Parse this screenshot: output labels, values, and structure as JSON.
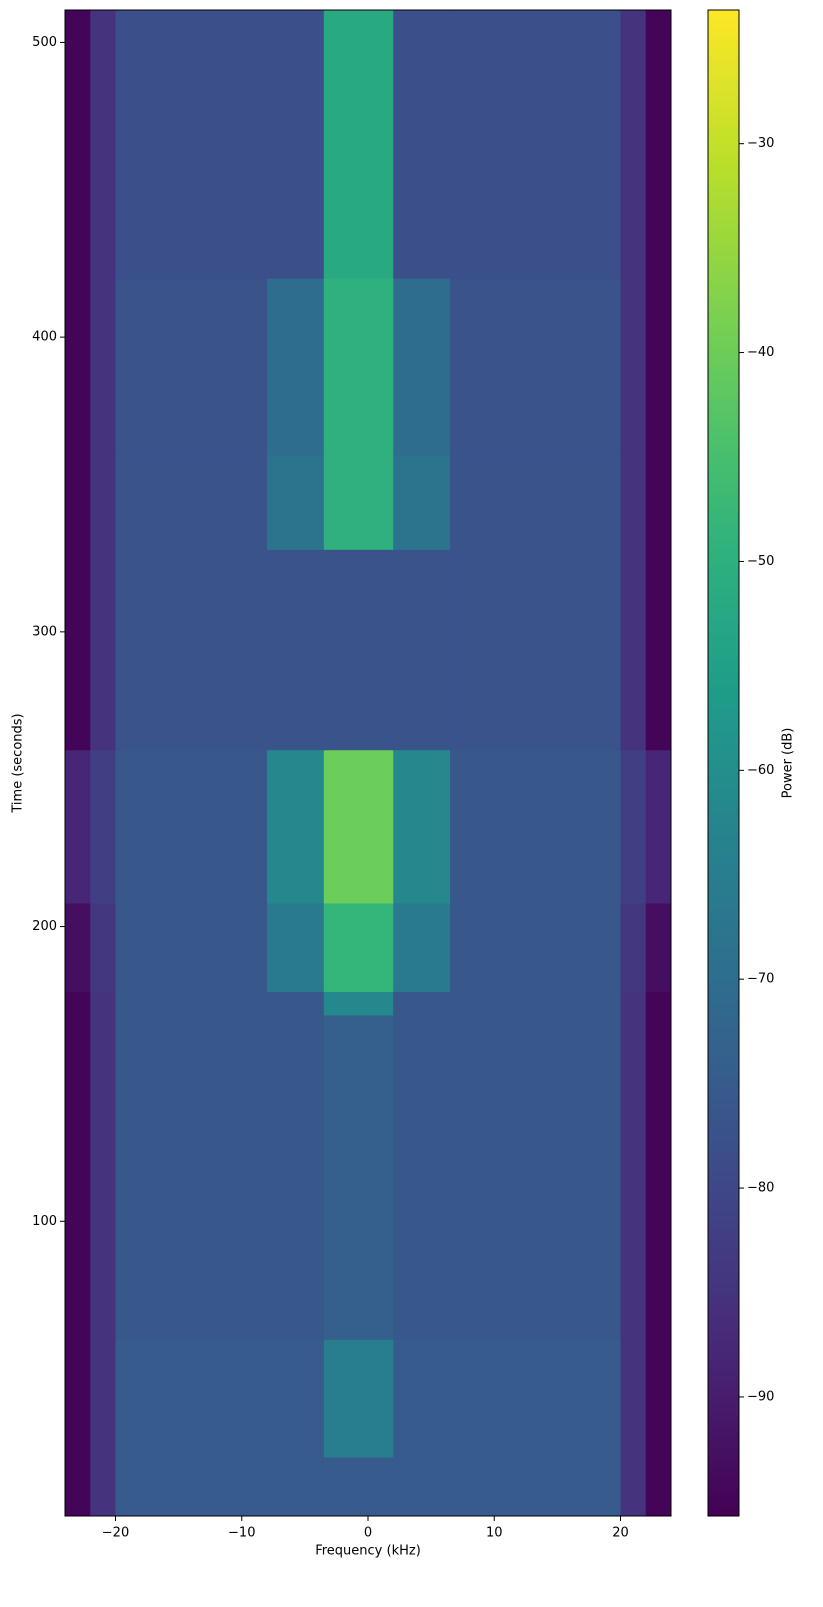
{
  "chart_data": {
    "type": "heatmap",
    "x_label": "Frequency (kHz)",
    "y_label": "Time (seconds)",
    "colorbar_label": "Power (dB)",
    "colormap": "viridis",
    "x_edges": [
      -24,
      -22,
      -20,
      -8,
      -3.5,
      2,
      6.5,
      20,
      22,
      24
    ],
    "y_edges": [
      0,
      20,
      60,
      170,
      178,
      208,
      260,
      328,
      360,
      420,
      511
    ],
    "values": [
      [
        -95,
        -85,
        -75,
        -75,
        -75,
        -75,
        -75,
        -85,
        -95
      ],
      [
        -95,
        -85,
        -75,
        -75,
        -65,
        -75,
        -75,
        -85,
        -95
      ],
      [
        -95,
        -85,
        -76,
        -76,
        -74,
        -76,
        -76,
        -85,
        -95
      ],
      [
        -95,
        -85,
        -76,
        -76,
        -62,
        -76,
        -76,
        -85,
        -95
      ],
      [
        -93,
        -84,
        -76,
        -66,
        -48,
        -66,
        -76,
        -84,
        -93
      ],
      [
        -88,
        -82,
        -76,
        -62,
        -40,
        -62,
        -76,
        -82,
        -88
      ],
      [
        -95,
        -85,
        -77,
        -77,
        -77,
        -77,
        -77,
        -85,
        -95
      ],
      [
        -95,
        -85,
        -77,
        -68,
        -50,
        -68,
        -77,
        -85,
        -95
      ],
      [
        -95,
        -85,
        -77,
        -70,
        -50,
        -70,
        -77,
        -85,
        -95
      ],
      [
        -95,
        -85,
        -78,
        -78,
        -52,
        -78,
        -78,
        -85,
        -95
      ]
    ],
    "xlim": [
      -24,
      24
    ],
    "ylim": [
      0,
      511
    ],
    "clim": [
      -95.7,
      -23.6
    ],
    "xticks": [
      {
        "value": -20,
        "label": "−20"
      },
      {
        "value": -10,
        "label": "−10"
      },
      0,
      10,
      20
    ],
    "yticks": [
      100,
      200,
      300,
      400,
      500
    ],
    "cticks": [
      {
        "value": -90,
        "label": "−90"
      },
      {
        "value": -80,
        "label": "−80"
      },
      {
        "value": -70,
        "label": "−70"
      },
      {
        "value": -60,
        "label": "−60"
      },
      {
        "value": -50,
        "label": "−50"
      },
      {
        "value": -40,
        "label": "−40"
      },
      {
        "value": -30,
        "label": "−30"
      }
    ]
  }
}
